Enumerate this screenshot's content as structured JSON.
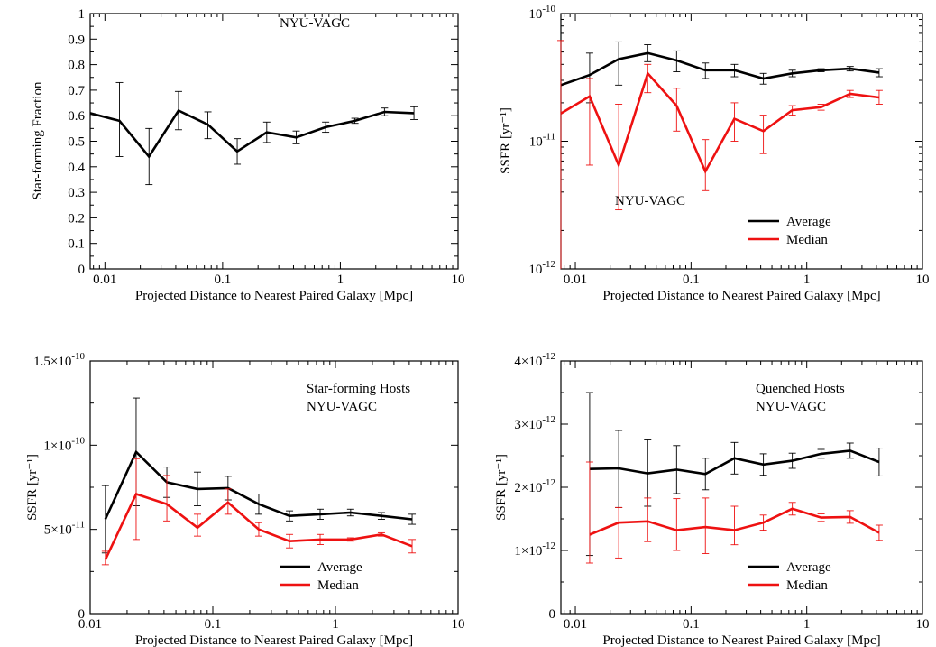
{
  "colors": {
    "average": "#000000",
    "median": "#ee1111"
  },
  "chart_data": [
    {
      "type": "line",
      "xscale": "log",
      "yscale": "linear",
      "xlim": [
        0.0075,
        10
      ],
      "ylim": [
        0,
        1
      ],
      "xlabel": "Projected Distance to Nearest Paired Galaxy [Mpc]",
      "ylabel": "Star-forming Fraction",
      "xticks": [
        {
          "v": 0.01,
          "label": "0.01"
        },
        {
          "v": 0.1,
          "label": "0.1"
        },
        {
          "v": 1,
          "label": "1"
        },
        {
          "v": 10,
          "label": "10"
        }
      ],
      "yticks": [
        {
          "v": 0,
          "label": "0"
        },
        {
          "v": 0.1,
          "label": "0.1"
        },
        {
          "v": 0.2,
          "label": "0.2"
        },
        {
          "v": 0.3,
          "label": "0.3"
        },
        {
          "v": 0.4,
          "label": "0.4"
        },
        {
          "v": 0.5,
          "label": "0.5"
        },
        {
          "v": 0.6,
          "label": "0.6"
        },
        {
          "v": 0.7,
          "label": "0.7"
        },
        {
          "v": 0.8,
          "label": "0.8"
        },
        {
          "v": 0.9,
          "label": "0.9"
        },
        {
          "v": 1,
          "label": "1"
        }
      ],
      "annotations": [
        "NYU-VAGC"
      ],
      "legend": [],
      "series": [
        {
          "color_key": "average",
          "x": [
            0.0075,
            0.0133,
            0.0237,
            0.0422,
            0.075,
            0.133,
            0.237,
            0.422,
            0.75,
            1.33,
            2.37,
            4.22
          ],
          "y": [
            0.61,
            0.58,
            0.44,
            0.62,
            0.565,
            0.46,
            0.535,
            0.515,
            0.555,
            0.58,
            0.615,
            0.61
          ],
          "err_lo": [
            null,
            0.14,
            0.11,
            0.075,
            0.055,
            0.05,
            0.04,
            0.025,
            0.02,
            0.01,
            0.015,
            0.025
          ],
          "err_hi": [
            null,
            0.15,
            0.11,
            0.075,
            0.05,
            0.05,
            0.04,
            0.025,
            0.02,
            0.01,
            0.015,
            0.025
          ]
        }
      ]
    },
    {
      "type": "line",
      "xscale": "log",
      "yscale": "log",
      "xlim": [
        0.0075,
        10
      ],
      "ylim": [
        1e-12,
        1e-10
      ],
      "xlabel": "Projected Distance to Nearest Paired Galaxy [Mpc]",
      "ylabel": "SSFR [yr⁻¹]",
      "xticks": [
        {
          "v": 0.01,
          "label": "0.01"
        },
        {
          "v": 0.1,
          "label": "0.1"
        },
        {
          "v": 1,
          "label": "1"
        },
        {
          "v": 10,
          "label": "10"
        }
      ],
      "yticks": [
        {
          "v": 1e-12,
          "base": "10",
          "exp": "-12"
        },
        {
          "v": 1e-11,
          "base": "10",
          "exp": "-11"
        },
        {
          "v": 1e-10,
          "base": "10",
          "exp": "-10"
        }
      ],
      "annotations": [
        "NYU-VAGC"
      ],
      "legend": [
        {
          "label": "Average",
          "color_key": "average"
        },
        {
          "label": "Median",
          "color_key": "median"
        }
      ],
      "series": [
        {
          "name": "Average",
          "color_key": "average",
          "x": [
            0.0075,
            0.0133,
            0.0237,
            0.0422,
            0.075,
            0.133,
            0.237,
            0.422,
            0.75,
            1.33,
            2.37,
            4.22
          ],
          "y": [
            2.75e-11,
            3.3e-11,
            4.4e-11,
            4.9e-11,
            4.3e-11,
            3.6e-11,
            3.6e-11,
            3.1e-11,
            3.4e-11,
            3.6e-11,
            3.7e-11,
            3.45e-11
          ],
          "err_lo": [
            null,
            1.3e-11,
            1.65e-11,
            7e-12,
            8e-12,
            5e-12,
            4e-12,
            3e-12,
            2e-12,
            1e-12,
            1.5e-12,
            2.5e-12
          ],
          "err_hi": [
            null,
            1.6e-11,
            1.6e-11,
            8e-12,
            8e-12,
            5e-12,
            4e-12,
            3e-12,
            2e-12,
            1e-12,
            1.5e-12,
            2.5e-12
          ]
        },
        {
          "name": "Median",
          "color_key": "median",
          "x": [
            0.0075,
            0.0133,
            0.0237,
            0.0422,
            0.075,
            0.133,
            0.237,
            0.422,
            0.75,
            1.33,
            2.37,
            4.22
          ],
          "y": [
            1.65e-11,
            2.25e-11,
            6.5e-12,
            3.4e-11,
            1.9e-11,
            5.8e-12,
            1.5e-11,
            1.2e-11,
            1.75e-11,
            1.85e-11,
            2.35e-11,
            2.2e-11
          ],
          "err_lo": [
            1.55e-11,
            1.6e-11,
            3.6e-12,
            1e-11,
            7e-12,
            1.7e-12,
            5e-12,
            4e-12,
            1.5e-12,
            1e-12,
            1.5e-12,
            2.5e-12
          ],
          "err_hi": [
            4.5e-11,
            8.5e-12,
            1.3e-11,
            6e-12,
            7e-12,
            4.5e-12,
            5e-12,
            4e-12,
            1.5e-12,
            1e-12,
            1.5e-12,
            3e-12
          ]
        }
      ]
    },
    {
      "type": "line",
      "xscale": "log",
      "yscale": "linear",
      "xlim": [
        0.01,
        10
      ],
      "ylim": [
        0,
        1.5e-10
      ],
      "xlabel": "Projected Distance to Nearest Paired Galaxy [Mpc]",
      "ylabel": "SSFR [yr⁻¹]",
      "xticks": [
        {
          "v": 0.01,
          "label": "0.01"
        },
        {
          "v": 0.1,
          "label": "0.1"
        },
        {
          "v": 1,
          "label": "1"
        },
        {
          "v": 10,
          "label": "10"
        }
      ],
      "yticks": [
        {
          "v": 0,
          "label": "0"
        },
        {
          "v": 5e-11,
          "mant": "5×",
          "base": "10",
          "exp": "-11"
        },
        {
          "v": 1e-10,
          "mant": "1×",
          "base": "10",
          "exp": "-10"
        },
        {
          "v": 1.5e-10,
          "mant": "1.5×",
          "base": "10",
          "exp": "-10"
        }
      ],
      "annotations": [
        "Star-forming Hosts",
        "NYU-VAGC"
      ],
      "legend": [
        {
          "label": "Average",
          "color_key": "average"
        },
        {
          "label": "Median",
          "color_key": "median"
        }
      ],
      "series": [
        {
          "name": "Average",
          "color_key": "average",
          "x": [
            0.0133,
            0.0237,
            0.0422,
            0.075,
            0.133,
            0.237,
            0.422,
            0.75,
            1.33,
            2.37,
            4.22
          ],
          "y": [
            5.6e-11,
            9.6e-11,
            7.8e-11,
            7.4e-11,
            7.45e-11,
            6.5e-11,
            5.8e-11,
            5.9e-11,
            6e-11,
            5.8e-11,
            5.6e-11
          ],
          "err_lo": [
            2e-11,
            3.2e-11,
            9e-12,
            1e-11,
            7e-12,
            6e-12,
            3e-12,
            3e-12,
            2e-12,
            2e-12,
            3e-12
          ],
          "err_hi": [
            2e-11,
            3.2e-11,
            9e-12,
            1e-11,
            7e-12,
            6e-12,
            3e-12,
            3e-12,
            2e-12,
            2e-12,
            3e-12
          ]
        },
        {
          "name": "Median",
          "color_key": "median",
          "x": [
            0.0133,
            0.0237,
            0.0422,
            0.075,
            0.133,
            0.237,
            0.422,
            0.75,
            1.33,
            2.37,
            4.22
          ],
          "y": [
            3.2e-11,
            7.1e-11,
            6.5e-11,
            5.1e-11,
            6.6e-11,
            5e-11,
            4.3e-11,
            4.4e-11,
            4.4e-11,
            4.7e-11,
            4e-11
          ],
          "err_lo": [
            3e-12,
            2.7e-11,
            1e-11,
            5e-12,
            7e-12,
            4e-12,
            4e-12,
            3e-12,
            1e-12,
            1e-12,
            4e-12
          ],
          "err_hi": [
            5e-12,
            2.1e-11,
            1.7e-11,
            8e-12,
            8e-12,
            4e-12,
            4e-12,
            3e-12,
            1e-12,
            1e-12,
            4e-12
          ]
        }
      ]
    },
    {
      "type": "line",
      "xscale": "log",
      "yscale": "linear",
      "xlim": [
        0.0075,
        10
      ],
      "ylim": [
        0,
        4e-12
      ],
      "xlabel": "Projected Distance to Nearest Paired Galaxy [Mpc]",
      "ylabel": "SSFR [yr⁻¹]",
      "xticks": [
        {
          "v": 0.01,
          "label": "0.01"
        },
        {
          "v": 0.1,
          "label": "0.1"
        },
        {
          "v": 1,
          "label": "1"
        },
        {
          "v": 10,
          "label": "10"
        }
      ],
      "yticks": [
        {
          "v": 0,
          "label": "0"
        },
        {
          "v": 1e-12,
          "mant": "1×",
          "base": "10",
          "exp": "-12"
        },
        {
          "v": 2e-12,
          "mant": "2×",
          "base": "10",
          "exp": "-12"
        },
        {
          "v": 3e-12,
          "mant": "3×",
          "base": "10",
          "exp": "-12"
        },
        {
          "v": 4e-12,
          "mant": "4×",
          "base": "10",
          "exp": "-12"
        }
      ],
      "annotations": [
        "Quenched Hosts",
        "NYU-VAGC"
      ],
      "legend": [
        {
          "label": "Average",
          "color_key": "average"
        },
        {
          "label": "Median",
          "color_key": "median"
        }
      ],
      "series": [
        {
          "name": "Average",
          "color_key": "average",
          "x": [
            0.0133,
            0.0237,
            0.0422,
            0.075,
            0.133,
            0.237,
            0.422,
            0.75,
            1.33,
            2.37,
            4.22
          ],
          "y": [
            2.29e-12,
            2.3e-12,
            2.22e-12,
            2.28e-12,
            2.21e-12,
            2.46e-12,
            2.36e-12,
            2.42e-12,
            2.53e-12,
            2.58e-12,
            2.4e-12
          ],
          "err_lo": [
            1.37e-12,
            6.2e-13,
            5.2e-13,
            3.8e-13,
            2.5e-13,
            2.5e-13,
            1.7e-13,
            1.2e-13,
            7e-14,
            1.2e-13,
            2.2e-13
          ],
          "err_hi": [
            1.21e-12,
            6e-13,
            5.3e-13,
            3.8e-13,
            2.5e-13,
            2.5e-13,
            1.7e-13,
            1.2e-13,
            7e-14,
            1.2e-13,
            2.2e-13
          ]
        },
        {
          "name": "Median",
          "color_key": "median",
          "x": [
            0.0133,
            0.0237,
            0.0422,
            0.075,
            0.133,
            0.237,
            0.422,
            0.75,
            1.33,
            2.37,
            4.22
          ],
          "y": [
            1.25e-12,
            1.44e-12,
            1.46e-12,
            1.32e-12,
            1.37e-12,
            1.32e-12,
            1.44e-12,
            1.66e-12,
            1.52e-12,
            1.53e-12,
            1.28e-12
          ],
          "err_lo": [
            4.5e-13,
            5.6e-13,
            3.2e-13,
            3.2e-13,
            4.2e-13,
            2.3e-13,
            1.2e-13,
            1e-13,
            6e-14,
            1e-13,
            1.2e-13
          ],
          "err_hi": [
            1.15e-12,
            2.4e-13,
            3.7e-13,
            5e-13,
            4.6e-13,
            3.8e-13,
            1.2e-13,
            1e-13,
            6e-14,
            1e-13,
            1.2e-13
          ]
        }
      ]
    }
  ]
}
